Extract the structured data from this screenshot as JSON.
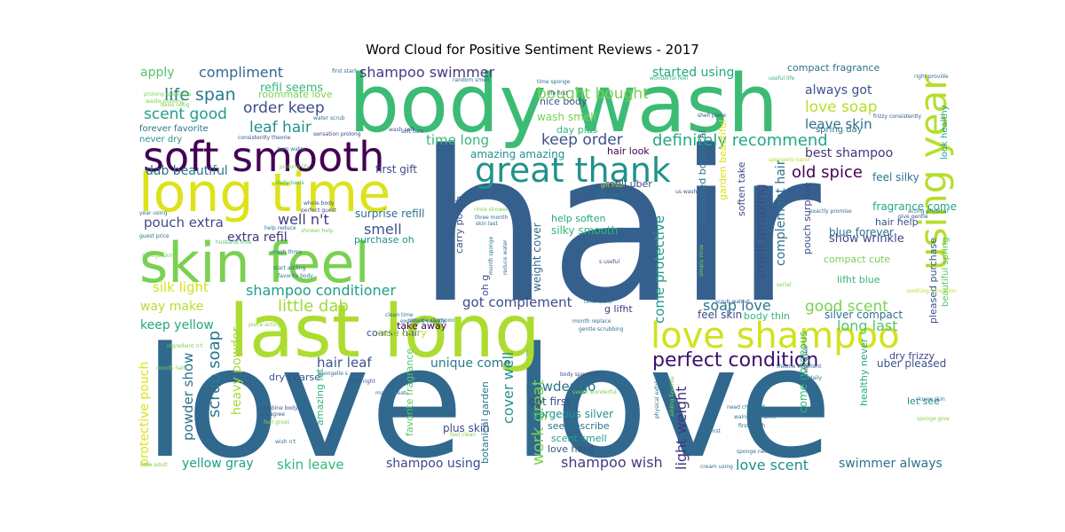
{
  "chart_data": {
    "type": "wordcloud",
    "title": "Word Cloud for Positive Sentiment Reviews - 2017",
    "palette": "viridis",
    "background": "#ffffff",
    "words": [
      {
        "text": "hair",
        "color": "#35608d"
      },
      {
        "text": "love love",
        "color": "#30688e"
      },
      {
        "text": "body wash",
        "color": "#3cbb75"
      },
      {
        "text": "last long",
        "color": "#addc30"
      },
      {
        "text": "long time",
        "color": "#dde318"
      },
      {
        "text": "skin feel",
        "color": "#7ad151"
      },
      {
        "text": "soft smooth",
        "color": "#440154"
      },
      {
        "text": "great thank",
        "color": "#21918c"
      },
      {
        "text": "love shampoo",
        "color": "#d2e21b"
      },
      {
        "text": "using year",
        "color": "#b5de2b"
      },
      {
        "text": "perfect condition",
        "color": "#3b0f70"
      },
      {
        "text": "definitely recommend",
        "color": "#22a884"
      },
      {
        "text": "compliment",
        "color": "#31688e"
      },
      {
        "text": "shampoo swimmer",
        "color": "#443983"
      },
      {
        "text": "life span",
        "color": "#2a788e"
      },
      {
        "text": "scent good",
        "color": "#1f9e89"
      },
      {
        "text": "order keep",
        "color": "#3e4a89"
      },
      {
        "text": "refil seems",
        "color": "#35b779"
      },
      {
        "text": "leaf hair",
        "color": "#21918c"
      },
      {
        "text": "time long",
        "color": "#35b779"
      },
      {
        "text": "keep order",
        "color": "#3b528b"
      },
      {
        "text": "bought bought",
        "color": "#7ad151"
      },
      {
        "text": "started using",
        "color": "#22a884"
      },
      {
        "text": "love soap",
        "color": "#b5de2b"
      },
      {
        "text": "always got",
        "color": "#3b528b"
      },
      {
        "text": "leave skin",
        "color": "#2c728e"
      },
      {
        "text": "best shampoo",
        "color": "#46327e"
      },
      {
        "text": "old spice",
        "color": "#440154"
      },
      {
        "text": "dab beautiful",
        "color": "#2c728e"
      },
      {
        "text": "pouch extra",
        "color": "#3e4a89"
      },
      {
        "text": "well n't",
        "color": "#443983"
      },
      {
        "text": "smell",
        "color": "#3b528b"
      },
      {
        "text": "extra refil",
        "color": "#46327e"
      },
      {
        "text": "shampoo conditioner",
        "color": "#1f9e89"
      },
      {
        "text": "silk light",
        "color": "#d2e21b"
      },
      {
        "text": "little dab",
        "color": "#a0da39"
      },
      {
        "text": "way make",
        "color": "#b5de2b"
      },
      {
        "text": "keep yellow",
        "color": "#22a884"
      },
      {
        "text": "got complement",
        "color": "#3e4a89"
      },
      {
        "text": "soap love",
        "color": "#2a788e"
      },
      {
        "text": "good scent",
        "color": "#7ad151"
      },
      {
        "text": "long last",
        "color": "#54c568"
      },
      {
        "text": "show wrinkle",
        "color": "#3e4a89"
      },
      {
        "text": "smell amazing",
        "color": "#3e4a89"
      },
      {
        "text": "complement hair",
        "color": "#2c728e"
      },
      {
        "text": "come protective",
        "color": "#1f9e89"
      },
      {
        "text": "hair leaf",
        "color": "#3b528b"
      },
      {
        "text": "unique come",
        "color": "#2a788e"
      },
      {
        "text": "powder go",
        "color": "#2c728e"
      },
      {
        "text": "scrub soap",
        "color": "#2a788e"
      },
      {
        "text": "powder show",
        "color": "#2c728e"
      },
      {
        "text": "heavy powder",
        "color": "#a0da39"
      },
      {
        "text": "protective pouch",
        "color": "#dde318"
      },
      {
        "text": "work great",
        "color": "#7ad151"
      },
      {
        "text": "cover well",
        "color": "#21918c"
      },
      {
        "text": "light weight",
        "color": "#46327e"
      },
      {
        "text": "love scent",
        "color": "#21918c"
      },
      {
        "text": "swimmer always",
        "color": "#2c728e"
      },
      {
        "text": "shampoo wish",
        "color": "#443983"
      },
      {
        "text": "shampoo using",
        "color": "#3e4a89"
      },
      {
        "text": "skin leave",
        "color": "#35b779"
      },
      {
        "text": "yellow gray",
        "color": "#1f9e89"
      },
      {
        "text": "apply",
        "color": "#54c568"
      },
      {
        "text": "roommate love",
        "color": "#7ad151"
      },
      {
        "text": "forever favorite",
        "color": "#2c728e"
      },
      {
        "text": "never dry",
        "color": "#21918c"
      },
      {
        "text": "nice body",
        "color": "#3b528b"
      },
      {
        "text": "wash smell",
        "color": "#7ad151"
      },
      {
        "text": "day plus",
        "color": "#35b779"
      },
      {
        "text": "hair look",
        "color": "#440154"
      },
      {
        "text": "first gift",
        "color": "#3e4a89"
      },
      {
        "text": "amazing amazing",
        "color": "#21918c"
      },
      {
        "text": "feel silky",
        "color": "#2c728e"
      },
      {
        "text": "fragrance come",
        "color": "#22a884"
      },
      {
        "text": "hair help",
        "color": "#3e4a89"
      },
      {
        "text": "blue forever",
        "color": "#2c728e"
      },
      {
        "text": "compact cute",
        "color": "#7ad151"
      },
      {
        "text": "lifht blue",
        "color": "#35b779"
      },
      {
        "text": "pleased purchase",
        "color": "#3b528b"
      },
      {
        "text": "beautiful spring",
        "color": "#54c568"
      },
      {
        "text": "look healthy",
        "color": "#1f9e89"
      },
      {
        "text": "spring day",
        "color": "#2c728e"
      },
      {
        "text": "compact fragrance",
        "color": "#2c728e"
      },
      {
        "text": "silver compact",
        "color": "#2c728e"
      },
      {
        "text": "dry frizzy",
        "color": "#3e4a89"
      },
      {
        "text": "uber pleased",
        "color": "#3b528b"
      },
      {
        "text": "let see",
        "color": "#21918c"
      },
      {
        "text": "healthy never",
        "color": "#22a884"
      },
      {
        "text": "come gorgeous",
        "color": "#35b779"
      },
      {
        "text": "feel skin",
        "color": "#3e4a89"
      },
      {
        "text": "body thin",
        "color": "#35b779"
      },
      {
        "text": "surprise refill",
        "color": "#2c728e"
      },
      {
        "text": "purchase oh",
        "color": "#21918c"
      },
      {
        "text": "help soften",
        "color": "#22a884"
      },
      {
        "text": "silky smooth",
        "color": "#35b779"
      },
      {
        "text": "carry pouch",
        "color": "#3b528b"
      },
      {
        "text": "weight cover",
        "color": "#31688e"
      },
      {
        "text": "coarse hair",
        "color": "#3e4a89"
      },
      {
        "text": "take away",
        "color": "#440154"
      },
      {
        "text": "cute carry",
        "color": "#b5de2b"
      },
      {
        "text": "dry coarse",
        "color": "#3b528b"
      },
      {
        "text": "got first",
        "color": "#3b528b"
      },
      {
        "text": "gorgeous silver",
        "color": "#21918c"
      },
      {
        "text": "see describe",
        "color": "#2c728e"
      },
      {
        "text": "scent smell",
        "color": "#1f9e89"
      },
      {
        "text": "love hard",
        "color": "#3b528b"
      },
      {
        "text": "plus skin",
        "color": "#3e4a89"
      },
      {
        "text": "amazing let",
        "color": "#35b779"
      },
      {
        "text": "favorite fragrance",
        "color": "#54c568"
      },
      {
        "text": "botanical garden",
        "color": "#2c728e"
      },
      {
        "text": "refill uber",
        "color": "#3e4a89"
      },
      {
        "text": "pouch surprise",
        "color": "#3e4a89"
      },
      {
        "text": "showered botanical",
        "color": "#2c728e"
      },
      {
        "text": "garden beautiful",
        "color": "#dde318"
      },
      {
        "text": "soften take",
        "color": "#3e4a89"
      },
      {
        "text": "g lifht",
        "color": "#443983"
      },
      {
        "text": "oh g",
        "color": "#3e4a89"
      },
      {
        "text": "prolong spongelle",
        "color": "#7ad151"
      },
      {
        "text": "first start",
        "color": "#2c728e"
      },
      {
        "text": "time sponge",
        "color": "#2c728e"
      },
      {
        "text": "random smell",
        "color": "#2c728e"
      },
      {
        "text": "wonderful feel",
        "color": "#35b779"
      },
      {
        "text": "useful life",
        "color": "#35b779"
      },
      {
        "text": "right provide",
        "color": "#2c728e"
      },
      {
        "text": "life first",
        "color": "#3b528b"
      },
      {
        "text": "shell piece",
        "color": "#3b528b"
      },
      {
        "text": "frizzy consistently",
        "color": "#3b528b"
      },
      {
        "text": "water scrub",
        "color": "#2c728e"
      },
      {
        "text": "sensation prolong",
        "color": "#3e4a89"
      },
      {
        "text": "consistently theorie",
        "color": "#3b528b"
      },
      {
        "text": "turn water",
        "color": "#2c728e"
      },
      {
        "text": "prolong life",
        "color": "#7ad151"
      },
      {
        "text": "daily basis",
        "color": "#35b779"
      },
      {
        "text": "whole body",
        "color": "#3b528b"
      },
      {
        "text": "perfect guest",
        "color": "#3b528b"
      },
      {
        "text": "help reduce",
        "color": "#2c728e"
      },
      {
        "text": "husband love",
        "color": "#54c568"
      },
      {
        "text": "mash three",
        "color": "#2c728e"
      },
      {
        "text": "start adding",
        "color": "#2c728e"
      },
      {
        "text": "favorite body",
        "color": "#2c728e"
      },
      {
        "text": "guest price",
        "color": "#2c728e"
      },
      {
        "text": "sponge skin",
        "color": "#7ad151"
      },
      {
        "text": "three month",
        "color": "#2c728e"
      },
      {
        "text": "skin last",
        "color": "#2c728e"
      },
      {
        "text": "month sponge",
        "color": "#2c728e"
      },
      {
        "text": "reduce water",
        "color": "#2c728e"
      },
      {
        "text": "s useful",
        "color": "#3b528b"
      },
      {
        "text": "rinse shower",
        "color": "#7ad151"
      },
      {
        "text": "span month",
        "color": "#2c728e"
      },
      {
        "text": "gift fresh",
        "color": "#b5de2b"
      },
      {
        "text": "us wash",
        "color": "#3b528b"
      },
      {
        "text": "spongelle hand",
        "color": "#b5de2b"
      },
      {
        "text": "exactly promise",
        "color": "#2c728e"
      },
      {
        "text": "acting physical",
        "color": "#2c728e"
      },
      {
        "text": "give gentle",
        "color": "#3b528b"
      },
      {
        "text": "simply rinse",
        "color": "#7ad151"
      },
      {
        "text": "scrub walnut",
        "color": "#3b528b"
      },
      {
        "text": "serial",
        "color": "#7ad151"
      },
      {
        "text": "soothing sensation",
        "color": "#b5de2b"
      },
      {
        "text": "clean time",
        "color": "#2c728e"
      },
      {
        "text": "time make",
        "color": "#2c728e"
      },
      {
        "text": "month replace",
        "color": "#2c728e"
      },
      {
        "text": "gentle scrubbing",
        "color": "#2c728e"
      },
      {
        "text": "excellent exactly",
        "color": "#2c728e"
      },
      {
        "text": "ingredient n't",
        "color": "#7ad151"
      },
      {
        "text": "month half",
        "color": "#7ad151"
      },
      {
        "text": "price right",
        "color": "#3b528b"
      },
      {
        "text": "body spongelle",
        "color": "#3b528b"
      },
      {
        "text": "combine body",
        "color": "#3b528b"
      },
      {
        "text": "n't agree",
        "color": "#3b528b"
      },
      {
        "text": "feel great",
        "color": "#7ad151"
      },
      {
        "text": "make great",
        "color": "#2c728e"
      },
      {
        "text": "wish n't",
        "color": "#2c728e"
      },
      {
        "text": "sweet wonderful",
        "color": "#7ad151"
      },
      {
        "text": "physical exfoliant",
        "color": "#2c728e"
      },
      {
        "text": "need changed",
        "color": "#2c728e"
      },
      {
        "text": "walnut combine",
        "color": "#2c728e"
      },
      {
        "text": "first mash",
        "color": "#2c728e"
      },
      {
        "text": "half first",
        "color": "#2c728e"
      },
      {
        "text": "sponge need",
        "color": "#2c728e"
      },
      {
        "text": "cream using",
        "color": "#2c728e"
      },
      {
        "text": "theorie excellent",
        "color": "#2c728e"
      },
      {
        "text": "compliment daily",
        "color": "#2c728e"
      },
      {
        "text": "know skin",
        "color": "#2c728e"
      },
      {
        "text": "sponge give",
        "color": "#7ad151"
      },
      {
        "text": "water water",
        "color": "#2c728e"
      },
      {
        "text": "little adult",
        "color": "#7ad151"
      },
      {
        "text": "basis notig",
        "color": "#7ad151"
      },
      {
        "text": "waste prolong",
        "color": "#7ad151"
      },
      {
        "text": "piece acting",
        "color": "#7ad151"
      },
      {
        "text": "spongelle s",
        "color": "#2c728e"
      },
      {
        "text": "adding favorite",
        "color": "#7ad151"
      },
      {
        "text": "feel clean",
        "color": "#7ad151"
      },
      {
        "text": "provide shampoo",
        "color": "#2c728e"
      },
      {
        "text": "year using",
        "color": "#2c728e"
      },
      {
        "text": "shower help",
        "color": "#7ad151"
      },
      {
        "text": "soft turn",
        "color": "#3b528b"
      },
      {
        "text": "wash soft",
        "color": "#3b528b"
      }
    ]
  }
}
